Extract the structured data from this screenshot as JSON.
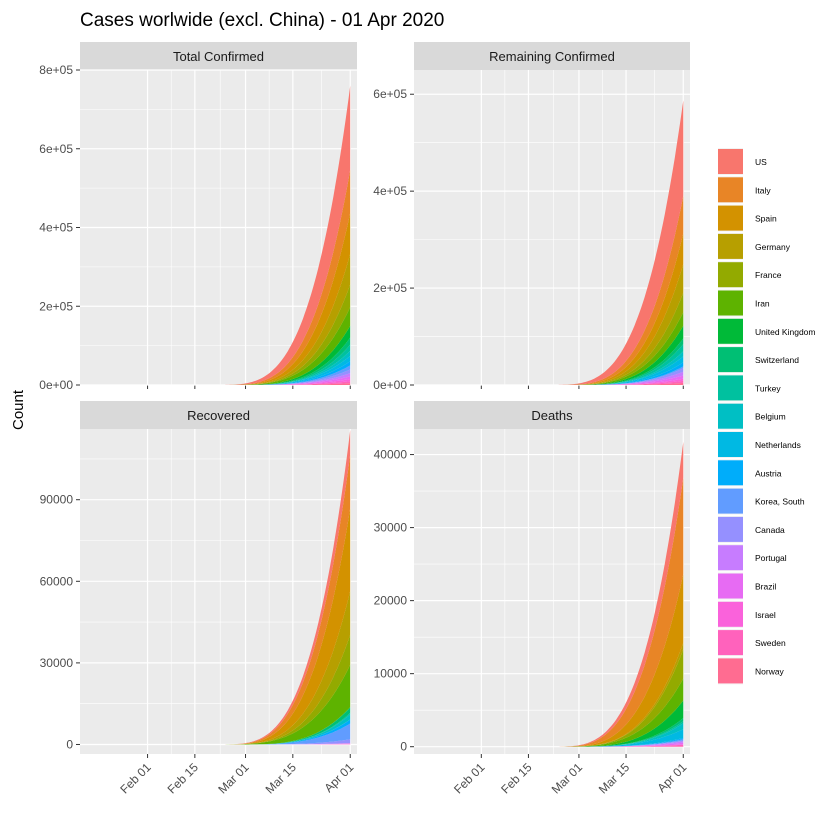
{
  "chart_data": {
    "type": "area",
    "title": "Cases worlwide (excl. China) - 01 Apr 2020",
    "ylabel": "Count",
    "xlabel": "",
    "x_ticks": [
      "Feb 01",
      "Feb 15",
      "Mar 01",
      "Mar 15",
      "Apr 01"
    ],
    "x_tick_dates": [
      "2020-02-01",
      "2020-02-15",
      "2020-03-01",
      "2020-03-15",
      "2020-04-01"
    ],
    "x_range": [
      "2020-01-22",
      "2020-04-01"
    ],
    "legend_position": "right",
    "grid": true,
    "series": [
      {
        "name": "US",
        "color": "#F8766D"
      },
      {
        "name": "Italy",
        "color": "#E88526"
      },
      {
        "name": "Spain",
        "color": "#D39200"
      },
      {
        "name": "Germany",
        "color": "#B79F00"
      },
      {
        "name": "France",
        "color": "#93AA00"
      },
      {
        "name": "Iran",
        "color": "#5EB300"
      },
      {
        "name": "United Kingdom",
        "color": "#00BA38"
      },
      {
        "name": "Switzerland",
        "color": "#00BF74"
      },
      {
        "name": "Turkey",
        "color": "#00C19F"
      },
      {
        "name": "Belgium",
        "color": "#00BFC4"
      },
      {
        "name": "Netherlands",
        "color": "#00B9E3"
      },
      {
        "name": "Austria",
        "color": "#00ADFA"
      },
      {
        "name": "Korea, South",
        "color": "#619CFF"
      },
      {
        "name": "Canada",
        "color": "#9590FF"
      },
      {
        "name": "Portugal",
        "color": "#C77CFF"
      },
      {
        "name": "Brazil",
        "color": "#E76BF3"
      },
      {
        "name": "Israel",
        "color": "#FA62DB"
      },
      {
        "name": "Sweden",
        "color": "#FF62BC"
      },
      {
        "name": "Norway",
        "color": "#FF6C91"
      }
    ],
    "panels": [
      {
        "title": "Total Confirmed",
        "ylim": [
          0,
          800000
        ],
        "y_ticks": [
          0,
          200000,
          400000,
          600000,
          800000
        ],
        "y_tick_labels": [
          "0e+00",
          "2e+05",
          "4e+05",
          "6e+05",
          "8e+05"
        ],
        "final_total": 745000,
        "final_values": [
          213000,
          110000,
          104000,
          77900,
          57500,
          47600,
          29900,
          17800,
          15700,
          13000,
          13600,
          10700,
          9900,
          9600,
          8300,
          6800,
          5600,
          4900,
          4700
        ]
      },
      {
        "title": "Remaining Confirmed",
        "ylim": [
          0,
          650000
        ],
        "y_ticks": [
          0,
          200000,
          400000,
          600000
        ],
        "y_tick_labels": [
          "0e+00",
          "2e+05",
          "4e+05",
          "6e+05"
        ],
        "final_total": 598000,
        "final_values": [
          197000,
          77600,
          63500,
          59000,
          40200,
          28000,
          26000,
          11800,
          14900,
          10300,
          12400,
          8400,
          3500,
          7500,
          7900,
          6500,
          4400,
          4300,
          4300
        ]
      },
      {
        "title": "Recovered",
        "ylim": [
          -3500,
          116000
        ],
        "y_ticks": [
          0,
          30000,
          60000,
          90000
        ],
        "y_tick_labels": [
          "0",
          "30000",
          "60000",
          "90000"
        ],
        "final_total": 105000,
        "final_values": [
          8900,
          19800,
          30500,
          16100,
          11100,
          15500,
          140,
          2000,
          500,
          1900,
          30,
          1500,
          5800,
          1400,
          70,
          130,
          200,
          100,
          10
        ]
      },
      {
        "title": "Deaths",
        "ylim": [
          -1000,
          43500
        ],
        "y_ticks": [
          0,
          10000,
          20000,
          30000,
          40000
        ],
        "y_tick_labels": [
          "0",
          "10000",
          "20000",
          "30000",
          "40000"
        ],
        "final_total": 40000,
        "final_values": [
          4900,
          13200,
          9400,
          900,
          4000,
          3000,
          2400,
          430,
          280,
          830,
          1200,
          160,
          170,
          120,
          190,
          240,
          40,
          240,
          30
        ]
      }
    ]
  }
}
